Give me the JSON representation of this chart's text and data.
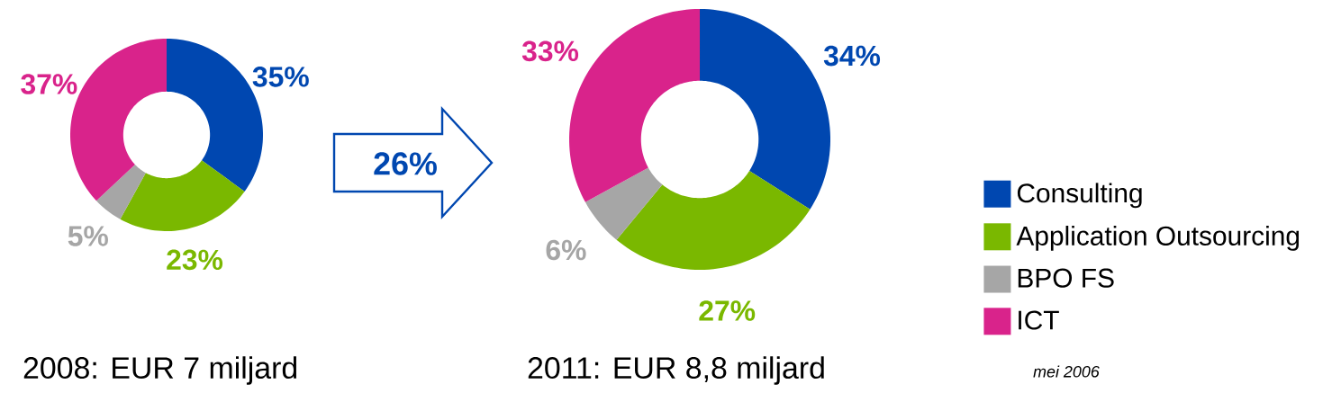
{
  "chart_data": [
    {
      "type": "donut",
      "title": "2008: EUR 7 miljard",
      "categories": [
        null,
        null,
        null,
        null
      ],
      "values": [
        35,
        23,
        5,
        37
      ],
      "colors": [
        "#0047b0",
        "#7ab800",
        "#a6a6a6",
        "#d9238b"
      ],
      "value_labels": [
        "35%",
        "23%",
        "5%",
        "37%"
      ],
      "annotations": [
        "26%"
      ]
    },
    {
      "type": "donut",
      "title": "2011: EUR 8,8 miljard",
      "categories": [
        "Consulting",
        "Application Outsourcing",
        "BPO FS",
        "ICT"
      ],
      "values": [
        34,
        27,
        6,
        33
      ],
      "colors": [
        "#0047b0",
        "#7ab800",
        "#a6a6a6",
        "#d9238b"
      ],
      "value_labels": [
        "34%",
        "27%",
        "6%",
        "33%"
      ],
      "legend": "right",
      "annotations": [
        "mei 2006"
      ]
    }
  ]
}
